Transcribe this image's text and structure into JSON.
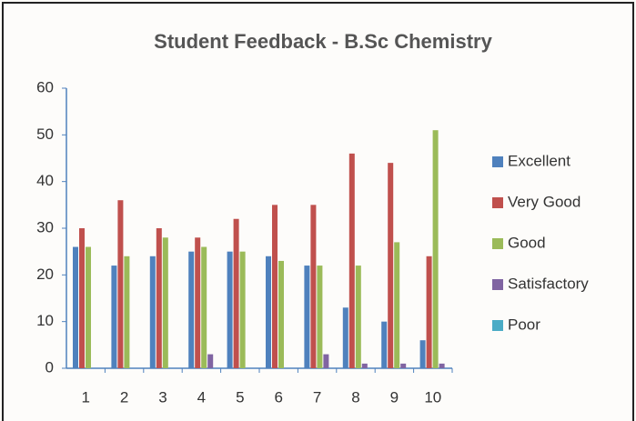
{
  "chart_data": {
    "type": "bar",
    "title": "Student Feedback - B.Sc Chemistry",
    "categories": [
      "1",
      "2",
      "3",
      "4",
      "5",
      "6",
      "7",
      "8",
      "9",
      "10"
    ],
    "series": [
      {
        "name": "Excellent",
        "color": "#4f81bd",
        "values": [
          26,
          22,
          24,
          25,
          25,
          24,
          22,
          13,
          10,
          6
        ]
      },
      {
        "name": "Very Good",
        "color": "#c0504d",
        "values": [
          30,
          36,
          30,
          28,
          32,
          35,
          35,
          46,
          44,
          24
        ]
      },
      {
        "name": "Good",
        "color": "#9bbb59",
        "values": [
          26,
          24,
          28,
          26,
          25,
          23,
          22,
          22,
          27,
          51
        ]
      },
      {
        "name": "Satisfactory",
        "color": "#8064a2",
        "values": [
          0,
          0,
          0,
          3,
          0,
          0,
          3,
          1,
          1,
          1
        ]
      },
      {
        "name": "Poor",
        "color": "#4bacc6",
        "values": [
          0,
          0,
          0,
          0,
          0,
          0,
          0,
          0,
          0,
          0
        ]
      }
    ],
    "ylim": [
      0,
      60
    ],
    "yticks": [
      0,
      10,
      20,
      30,
      40,
      50,
      60
    ],
    "grid": false,
    "legend": "right"
  }
}
